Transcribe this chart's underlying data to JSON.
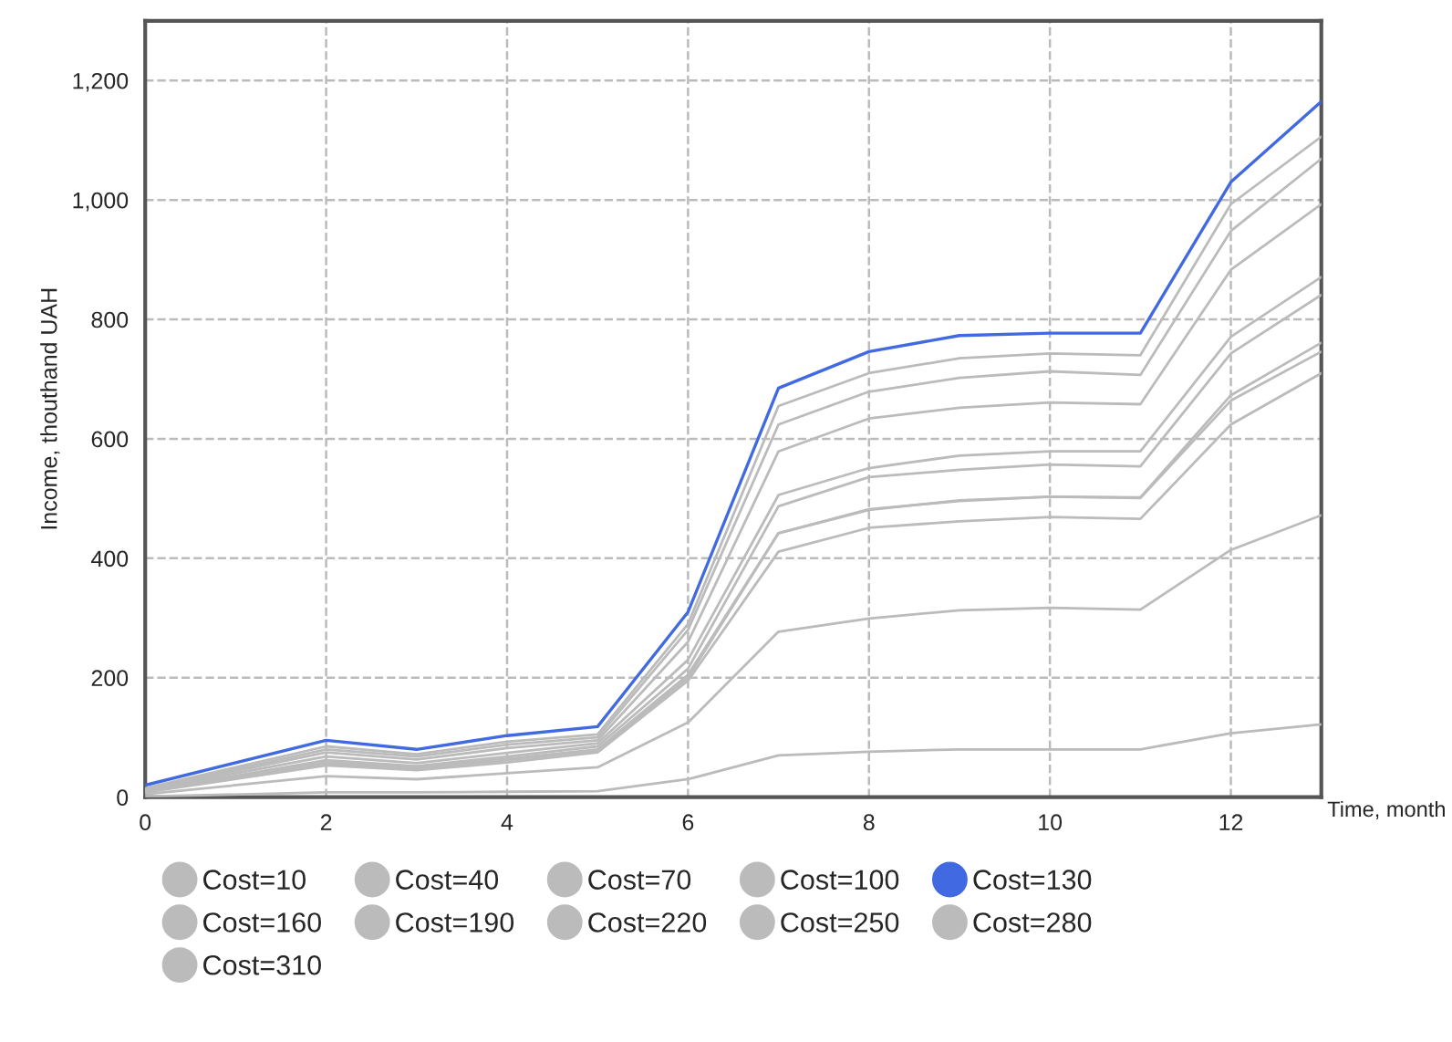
{
  "chart_data": {
    "type": "line",
    "xlabel": "Time, month",
    "ylabel": "Income, thouthand UAH",
    "x": [
      0,
      2,
      3,
      4,
      5,
      6,
      7,
      8,
      9,
      10,
      11,
      12,
      13
    ],
    "xlim": [
      0,
      13
    ],
    "xticks": [
      0,
      2,
      4,
      6,
      8,
      10,
      12
    ],
    "ylim": [
      0,
      1300
    ],
    "yticks": [
      0,
      {
        "value": 200,
        "label": "200"
      },
      {
        "value": 400,
        "label": "400"
      },
      {
        "value": 600,
        "label": "600"
      },
      {
        "value": 800,
        "label": "800"
      },
      {
        "value": 1000,
        "label": "1,000"
      },
      {
        "value": 1200,
        "label": "1,200"
      }
    ],
    "grid": true,
    "legend": "bottom",
    "line_style": "solid",
    "series": [
      {
        "name": "Cost=10",
        "color": "#bbbbbb",
        "values": [
          1,
          8,
          8,
          9,
          10,
          30,
          70,
          76,
          80,
          80,
          80,
          107,
          122
        ]
      },
      {
        "name": "Cost=40",
        "color": "#bbbbbb",
        "values": [
          5,
          35,
          30,
          40,
          50,
          125,
          277,
          299,
          313,
          317,
          314,
          414,
          472
        ]
      },
      {
        "name": "Cost=70",
        "color": "#bbbbbb",
        "values": [
          8,
          53,
          45,
          58,
          75,
          195,
          411,
          451,
          462,
          469,
          466,
          624,
          710
        ]
      },
      {
        "name": "Cost=100",
        "color": "#bbbbbb",
        "values": [
          14,
          80,
          68,
          88,
          100,
          280,
          624,
          679,
          702,
          713,
          707,
          948,
          1069
        ]
      },
      {
        "name": "Cost=130",
        "color": "#4169e1",
        "values": [
          20,
          95,
          80,
          103,
          118,
          310,
          685,
          746,
          773,
          777,
          777,
          1030,
          1165
        ]
      },
      {
        "name": "Cost=160",
        "color": "#bbbbbb",
        "values": [
          15,
          85,
          72,
          93,
          105,
          290,
          655,
          710,
          735,
          743,
          740,
          993,
          1106
        ]
      },
      {
        "name": "Cost=190",
        "color": "#bbbbbb",
        "values": [
          13,
          75,
          63,
          82,
          95,
          260,
          579,
          634,
          652,
          661,
          658,
          883,
          993
        ]
      },
      {
        "name": "Cost=220",
        "color": "#bbbbbb",
        "values": [
          12,
          68,
          57,
          74,
          90,
          230,
          506,
          551,
          572,
          579,
          579,
          771,
          871
        ]
      },
      {
        "name": "Cost=250",
        "color": "#bbbbbb",
        "values": [
          10,
          62,
          52,
          68,
          85,
          215,
          487,
          536,
          548,
          557,
          554,
          743,
          841
        ]
      },
      {
        "name": "Cost=280",
        "color": "#bbbbbb",
        "values": [
          10,
          58,
          50,
          64,
          80,
          205,
          442,
          481,
          497,
          503,
          502,
          673,
          761
        ]
      },
      {
        "name": "Cost=310",
        "color": "#bbbbbb",
        "values": [
          9,
          56,
          48,
          62,
          78,
          200,
          442,
          482,
          496,
          503,
          501,
          664,
          746
        ]
      }
    ]
  }
}
